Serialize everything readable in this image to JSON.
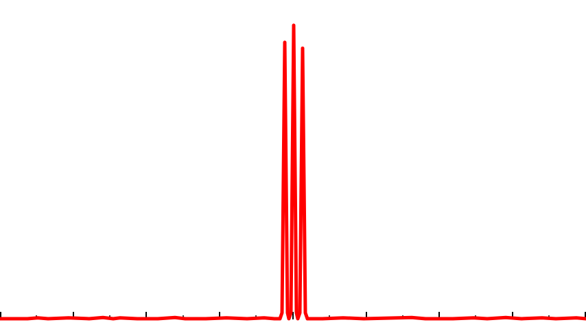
{
  "chart_data": {
    "type": "line",
    "title": "",
    "xlabel": "",
    "ylabel": "",
    "grid": false,
    "legend": "none",
    "xlim": [
      0,
      854
    ],
    "ylim": [
      0,
      1.0
    ],
    "series": [
      {
        "color": "#ff0000",
        "points": [
          [
            0,
            0.0
          ],
          [
            40,
            0.0
          ],
          [
            55,
            0.003
          ],
          [
            70,
            0.0
          ],
          [
            100,
            0.003
          ],
          [
            130,
            0.0
          ],
          [
            150,
            0.004
          ],
          [
            165,
            0.0
          ],
          [
            175,
            0.003
          ],
          [
            200,
            0.0
          ],
          [
            230,
            0.0
          ],
          [
            255,
            0.004
          ],
          [
            270,
            0.0
          ],
          [
            300,
            0.0
          ],
          [
            330,
            0.003
          ],
          [
            360,
            0.0
          ],
          [
            385,
            0.003
          ],
          [
            400,
            0.0
          ],
          [
            408,
            0.0
          ],
          [
            411,
            0.02
          ],
          [
            415,
            0.94
          ],
          [
            419,
            0.02
          ],
          [
            421,
            0.0
          ],
          [
            424,
            0.02
          ],
          [
            428,
            0.998
          ],
          [
            432,
            0.02
          ],
          [
            434,
            0.0
          ],
          [
            437,
            0.02
          ],
          [
            441,
            0.92
          ],
          [
            445,
            0.02
          ],
          [
            448,
            0.0
          ],
          [
            470,
            0.0
          ],
          [
            500,
            0.003
          ],
          [
            530,
            0.0
          ],
          [
            580,
            0.003
          ],
          [
            600,
            0.004
          ],
          [
            620,
            0.0
          ],
          [
            660,
            0.0
          ],
          [
            690,
            0.003
          ],
          [
            710,
            0.0
          ],
          [
            737,
            0.004
          ],
          [
            760,
            0.0
          ],
          [
            790,
            0.003
          ],
          [
            810,
            0.0
          ],
          [
            840,
            0.003
          ],
          [
            854,
            0.0
          ]
        ]
      }
    ],
    "x_major_ticks": [
      0,
      107,
      213,
      320,
      427,
      534,
      640,
      747,
      854
    ],
    "x_minor_ticks": [
      53,
      160,
      267,
      373,
      480,
      587,
      693,
      800
    ]
  }
}
